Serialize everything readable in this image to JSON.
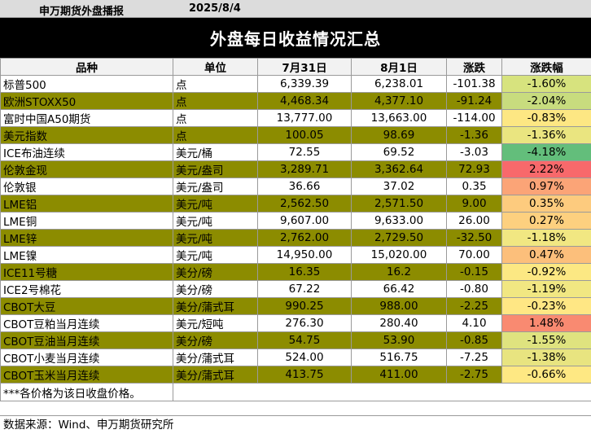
{
  "header": {
    "org": "申万期货外盘播报",
    "date": "2025/8/4"
  },
  "title": "外盘每日收益情况汇总",
  "columns": [
    "品种",
    "单位",
    "7月31日",
    "8月1日",
    "涨跌",
    "涨跌幅"
  ],
  "rows": [
    {
      "name": "标普500",
      "unit": "点",
      "d1": "6,339.39",
      "d2": "6,238.01",
      "chg": "-101.38",
      "pct": "-1.60%",
      "color": "#d7e37e"
    },
    {
      "name": "欧洲STOXX50",
      "unit": "点",
      "d1": "4,468.34",
      "d2": "4,377.10",
      "chg": "-91.24",
      "pct": "-2.04%",
      "color": "#c8dc7e"
    },
    {
      "name": "富时中国A50期货",
      "unit": "点",
      "d1": "13,777.00",
      "d2": "13,663.00",
      "chg": "-114.00",
      "pct": "-0.83%",
      "color": "#fde783"
    },
    {
      "name": "美元指数",
      "unit": "点",
      "d1": "100.05",
      "d2": "98.69",
      "chg": "-1.36",
      "pct": "-1.36%",
      "color": "#eae580"
    },
    {
      "name": "ICE布油连续",
      "unit": "美元/桶",
      "d1": "72.55",
      "d2": "69.52",
      "chg": "-3.03",
      "pct": "-4.18%",
      "color": "#63be7b"
    },
    {
      "name": "伦敦金现",
      "unit": "美元/盎司",
      "d1": "3,289.71",
      "d2": "3,362.64",
      "chg": "72.93",
      "pct": "2.22%",
      "color": "#f8696b"
    },
    {
      "name": "伦敦银",
      "unit": "美元/盎司",
      "d1": "36.66",
      "d2": "37.02",
      "chg": "0.35",
      "pct": "0.97%",
      "color": "#fba477"
    },
    {
      "name": "LME铝",
      "unit": "美元/吨",
      "d1": "2,562.50",
      "d2": "2,571.50",
      "chg": "9.00",
      "pct": "0.35%",
      "color": "#fdcb7e"
    },
    {
      "name": "LME铜",
      "unit": "美元/吨",
      "d1": "9,607.00",
      "d2": "9,633.00",
      "chg": "26.00",
      "pct": "0.27%",
      "color": "#fdd07f"
    },
    {
      "name": "LME锌",
      "unit": "美元/吨",
      "d1": "2,762.00",
      "d2": "2,729.50",
      "chg": "-32.50",
      "pct": "-1.18%",
      "color": "#f1e782"
    },
    {
      "name": "LME镍",
      "unit": "美元/吨",
      "d1": "14,950.00",
      "d2": "15,020.00",
      "chg": "70.00",
      "pct": "0.47%",
      "color": "#fcbf7b"
    },
    {
      "name": "ICE11号糖",
      "unit": "美分/磅",
      "d1": "16.35",
      "d2": "16.2",
      "chg": "-0.15",
      "pct": "-0.92%",
      "color": "#fce883"
    },
    {
      "name": "ICE2号棉花",
      "unit": "美分/磅",
      "d1": "67.22",
      "d2": "66.42",
      "chg": "-0.80",
      "pct": "-1.19%",
      "color": "#f1e782"
    },
    {
      "name": "CBOT大豆",
      "unit": "美分/蒲式耳",
      "d1": "990.25",
      "d2": "988.00",
      "chg": "-2.25",
      "pct": "-0.23%",
      "color": "#ffe784"
    },
    {
      "name": "CBOT豆粕当月连续",
      "unit": "美元/短吨",
      "d1": "276.30",
      "d2": "280.40",
      "chg": "4.10",
      "pct": "1.48%",
      "color": "#f98a71"
    },
    {
      "name": "CBOT豆油当月连续",
      "unit": "美分/磅",
      "d1": "54.75",
      "d2": "53.90",
      "chg": "-0.85",
      "pct": "-1.55%",
      "color": "#dfe37f"
    },
    {
      "name": "CBOT小麦当月连续",
      "unit": "美分/蒲式耳",
      "d1": "524.00",
      "d2": "516.75",
      "chg": "-7.25",
      "pct": "-1.38%",
      "color": "#e8e480"
    },
    {
      "name": "CBOT玉米当月连续",
      "unit": "美分/蒲式耳",
      "d1": "413.75",
      "d2": "411.00",
      "chg": "-2.75",
      "pct": "-0.66%",
      "color": "#fee883"
    }
  ],
  "note": "***各价格为该日收盘价格。",
  "source": "数据来源：Wind、申万期货研究所"
}
